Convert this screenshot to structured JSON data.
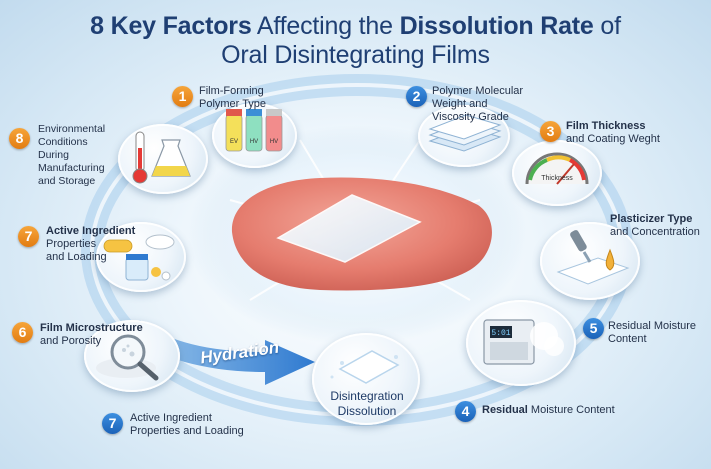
{
  "title": {
    "line1_bold1": "8 Key Factors",
    "line1_mid": " Affecting the ",
    "line1_bold2": "Dissolution Rate",
    "line1_end": " of",
    "line2": "Oral Disintegrating Films"
  },
  "factors": [
    {
      "number": "1",
      "line1": "Film-Forming",
      "line2": "Polymer Type",
      "vial_labels": [
        "EV",
        "HV",
        "HV"
      ]
    },
    {
      "number": "2",
      "line1": "Polymer Molecular",
      "line2": "Weight and",
      "line3": "Viscosity Grade"
    },
    {
      "number": "3",
      "line1": "Film Thickness",
      "line2": "and Coating Weght",
      "gauge_label": "Thickness"
    },
    {
      "number": "4",
      "bold": "Residual",
      "rest": " Moisture Content"
    },
    {
      "number": "5",
      "line1": "Residual Moisture",
      "line2": "Content",
      "display": "5:01"
    },
    {
      "number": "6",
      "line1": "Film Microstructure",
      "line2": "and Porosity"
    },
    {
      "number": "7",
      "line1": "Active Ingredient",
      "line2": "Properties",
      "line3": "and Loading"
    },
    {
      "number": "7",
      "line1": "Active Ingredient",
      "line2": "Properties and Loading"
    },
    {
      "number": "8",
      "line1": "Environmental",
      "line2": "Conditions",
      "line3": "During",
      "line4": "Manufacturing",
      "line5": "and Storage"
    },
    {
      "number": "",
      "line1": "Plasticizer Type",
      "line2": "and Concentration"
    }
  ],
  "arrow_label": "Hydration",
  "center": {
    "line1": "Disintegration",
    "line2": "Dissolution"
  },
  "colors": {
    "title": "#1f3f73",
    "orange": "#ee8f22",
    "blue": "#2a76cc"
  }
}
